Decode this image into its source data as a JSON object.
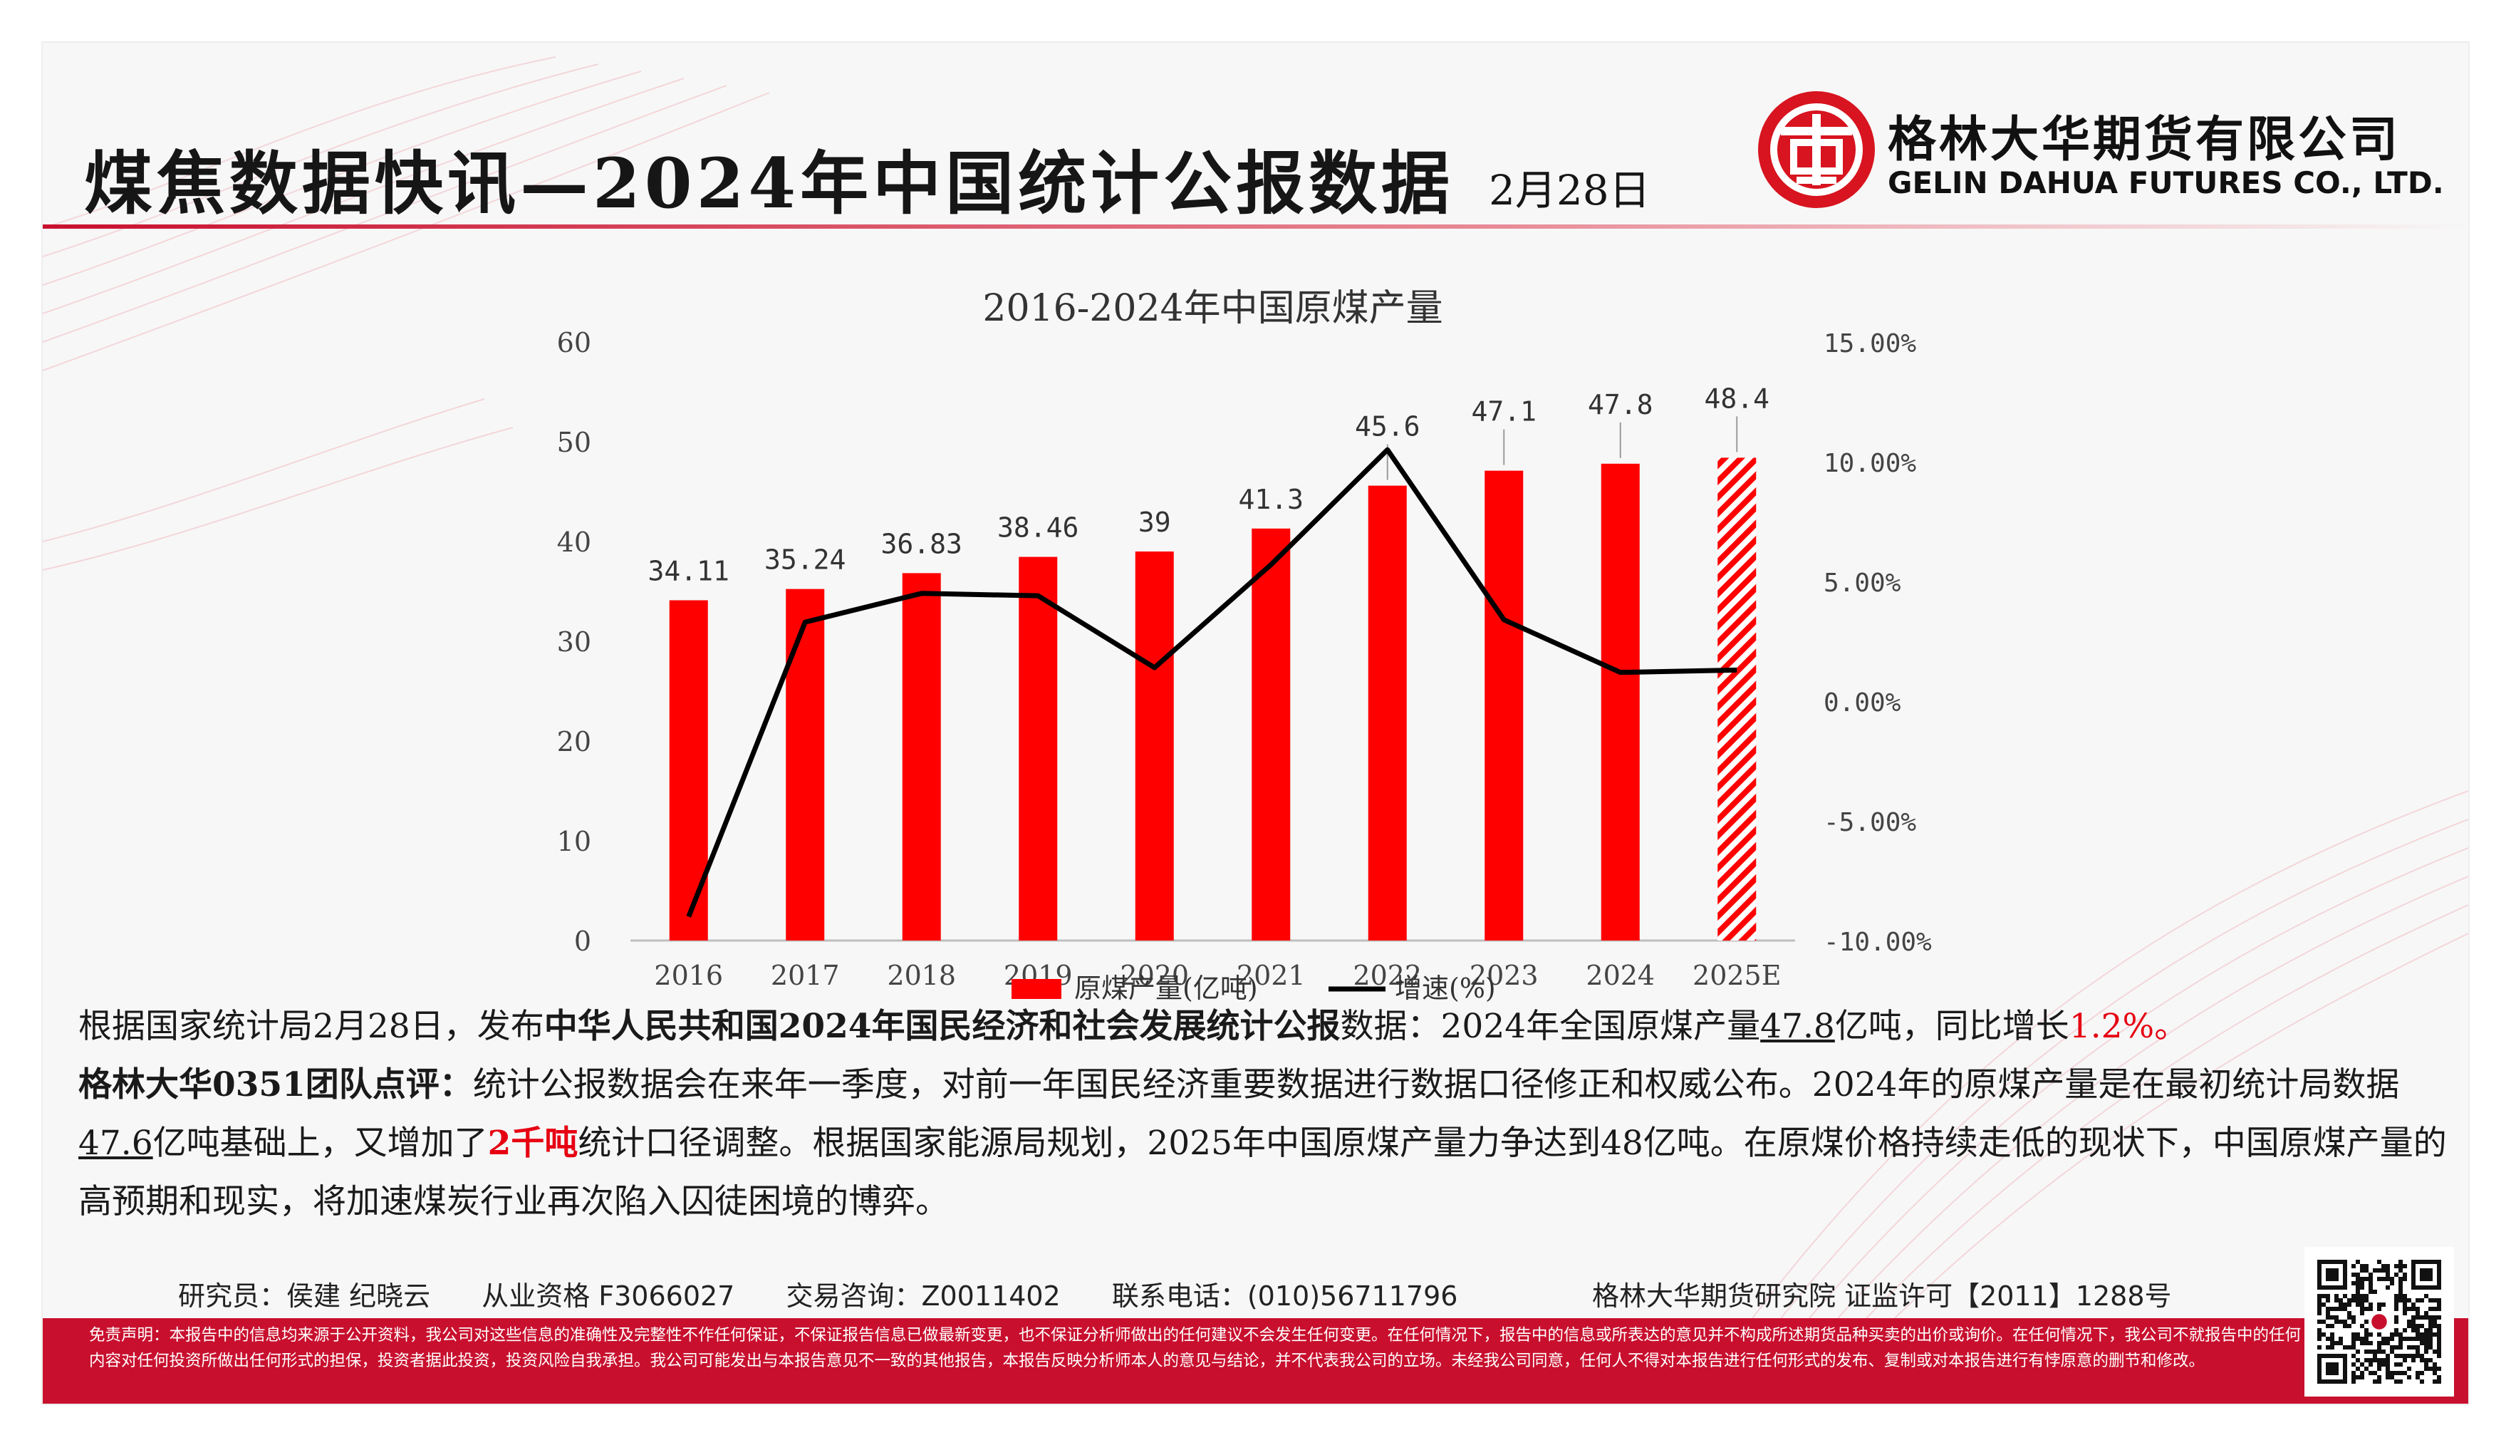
{
  "header": {
    "title": "煤焦数据快讯—2024年中国统计公报数据",
    "date": "2月28日",
    "company_cn": "格林大华期货有限公司",
    "company_en": "GELIN DAHUA FUTURES CO., LTD."
  },
  "colors": {
    "brand_red": "#c8102e",
    "bar_red": "#ff0000",
    "line": "#000000",
    "highlight_red": "#e60012"
  },
  "chart_data": {
    "type": "bar",
    "title": "2016-2024年中国原煤产量",
    "categories": [
      "2016",
      "2017",
      "2018",
      "2019",
      "2020",
      "2021",
      "2022",
      "2023",
      "2024",
      "2025E"
    ],
    "series": [
      {
        "name": "原煤产量(亿吨)",
        "type": "bar",
        "axis": "left",
        "values": [
          34.11,
          35.24,
          36.83,
          38.46,
          39,
          41.3,
          45.6,
          47.1,
          47.8,
          48.4
        ],
        "value_labels": [
          "34.11",
          "35.24",
          "36.83",
          "38.46",
          "39",
          "41.3",
          "45.6",
          "47.1",
          "47.8",
          "48.4"
        ],
        "hatched_last": true
      },
      {
        "name": "增速(%)",
        "type": "line",
        "axis": "right",
        "values": [
          -9.0,
          3.3,
          4.5,
          4.4,
          1.4,
          5.7,
          10.5,
          3.4,
          1.2,
          1.3
        ]
      }
    ],
    "left_axis": {
      "ylim": [
        0,
        60
      ],
      "ticks": [
        "0",
        "10",
        "20",
        "30",
        "40",
        "50",
        "60"
      ]
    },
    "right_axis": {
      "ylim": [
        -10,
        15
      ],
      "ticks": [
        "-10.00%",
        "-5.00%",
        "0.00%",
        "5.00%",
        "10.00%",
        "15.00%"
      ]
    },
    "legend_position": "bottom",
    "grid": false
  },
  "body": {
    "p1": {
      "a": "根据国家统计局2月28日，发布",
      "b": "中华人民共和国2024年国民经济和社会发展统计公报",
      "c": "数据：2024年全国原煤产量",
      "d": "47.8",
      "e": "亿吨，同比增长",
      "f": "1.2%",
      "g": "。"
    },
    "p2": {
      "a": "格林大华0351团队点评：",
      "b": "统计公报数据会在来年一季度，对前一年国民经济重要数据进行数据口径修正和权威公布。2024年的原煤产量是在最初统计局数据",
      "c": "47.6",
      "d": "亿吨基础上，又增加了",
      "e": "2千吨",
      "f": "统计口径调整。根据国家能源局规划，2025年中国原煤产量力争达到48亿吨。在原煤价格持续走低的现状下，中国原煤产量的高预期和现实，将加速煤炭行业再次陷入囚徒困境的博弈。"
    }
  },
  "footer": {
    "researcher": "研究员：侯建 纪晓云",
    "license": "从业资格 F3066027",
    "consult": "交易咨询：Z0011402",
    "phone": "联系电话：(010)56711796",
    "institute": "格林大华期货研究院 证监许可【2011】1288号",
    "disclaimer": "免责声明：本报告中的信息均来源于公开资料，我公司对这些信息的准确性及完整性不作任何保证，不保证报告信息已做最新变更，也不保证分析师做出的任何建议不会发生任何变更。在任何情况下，报告中的信息或所表达的意见并不构成所述期货品种买卖的出价或询价。在任何情况下，我公司不就报告中的任何内容对任何投资所做出任何形式的担保，投资者据此投资，投资风险自我承担。我公司可能发出与本报告意见不一致的其他报告，本报告反映分析师本人的意见与结论，并不代表我公司的立场。未经我公司同意，任何人不得对本报告进行任何形式的发布、复制或对本报告进行有悖原意的删节和修改。"
  }
}
